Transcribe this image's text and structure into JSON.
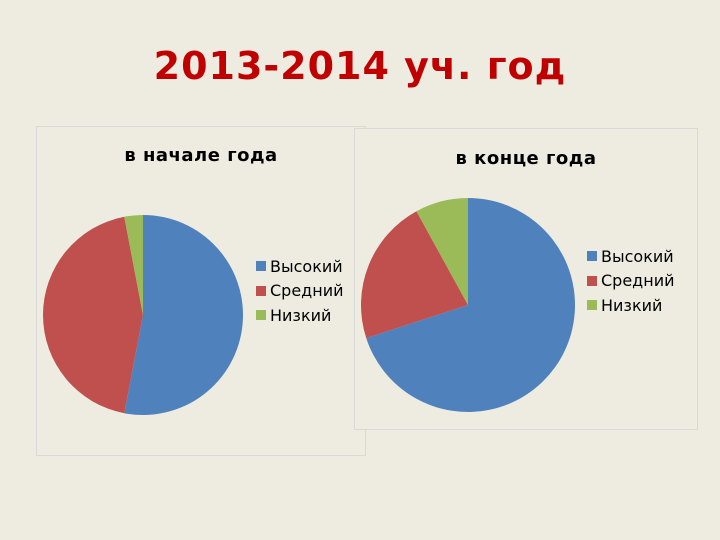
{
  "slide": {
    "title": "2013-2014 уч. год"
  },
  "chart_data": [
    {
      "type": "pie",
      "title": "в начале года",
      "categories": [
        "Высокий",
        "Средний",
        "Низкий"
      ],
      "values": [
        53,
        44,
        3
      ],
      "colors": [
        "#4F81BD",
        "#C0504D",
        "#9BBB59"
      ],
      "legend_position": "right"
    },
    {
      "type": "pie",
      "title": "в конце года",
      "categories": [
        "Высокий",
        "Средний",
        "Низкий"
      ],
      "values": [
        70,
        22,
        8
      ],
      "colors": [
        "#4F81BD",
        "#C0504D",
        "#9BBB59"
      ],
      "legend_position": "right"
    }
  ]
}
